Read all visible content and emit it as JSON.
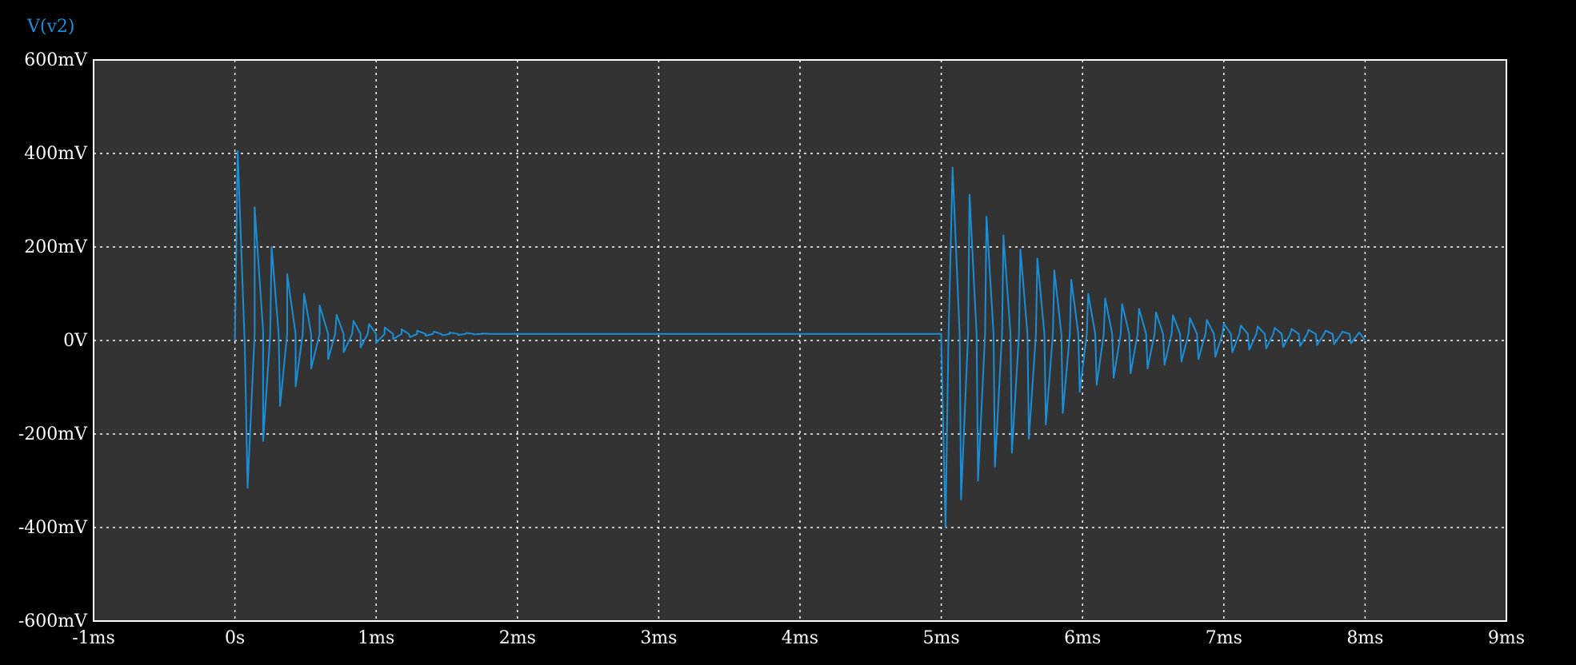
{
  "chart_data": {
    "type": "line",
    "title": "",
    "xlabel": "",
    "ylabel": "",
    "x_unit": "ms",
    "y_unit": "mV",
    "xlim": [
      -1,
      9
    ],
    "ylim": [
      -600,
      600
    ],
    "x_ticks": [
      -1,
      0,
      1,
      2,
      3,
      4,
      5,
      6,
      7,
      8,
      9
    ],
    "x_tick_labels": [
      "-1ms",
      "0s",
      "1ms",
      "2ms",
      "3ms",
      "4ms",
      "5ms",
      "6ms",
      "7ms",
      "8ms",
      "9ms"
    ],
    "y_ticks": [
      600,
      400,
      200,
      0,
      -200,
      -400,
      -600
    ],
    "y_tick_labels": [
      "600mV",
      "400mV",
      "200mV",
      "0V",
      "-200mV",
      "-400mV",
      "-600mV"
    ],
    "grid": true,
    "legend": "top-left",
    "colors": {
      "background": "#000000",
      "plot_area": "#333333",
      "frame": "#ffffff",
      "grid": "#ffffff",
      "text": "#ffffff",
      "series": "#1a8fd8"
    },
    "series": [
      {
        "name": "V(v2)",
        "color": "#1a8fd8",
        "points": [
          [
            0.0,
            0
          ],
          [
            0.02,
            405
          ],
          [
            0.07,
            -10
          ],
          [
            0.09,
            -315
          ],
          [
            0.14,
            15
          ],
          [
            0.14,
            285
          ],
          [
            0.2,
            20
          ],
          [
            0.2,
            -215
          ],
          [
            0.25,
            12
          ],
          [
            0.26,
            200
          ],
          [
            0.31,
            14
          ],
          [
            0.32,
            -140
          ],
          [
            0.37,
            14
          ],
          [
            0.37,
            142
          ],
          [
            0.43,
            14
          ],
          [
            0.43,
            -98
          ],
          [
            0.48,
            14
          ],
          [
            0.49,
            100
          ],
          [
            0.54,
            14
          ],
          [
            0.54,
            -60
          ],
          [
            0.6,
            14
          ],
          [
            0.6,
            75
          ],
          [
            0.66,
            14
          ],
          [
            0.66,
            -40
          ],
          [
            0.71,
            14
          ],
          [
            0.72,
            55
          ],
          [
            0.77,
            14
          ],
          [
            0.77,
            -25
          ],
          [
            0.83,
            14
          ],
          [
            0.84,
            42
          ],
          [
            0.89,
            14
          ],
          [
            0.89,
            -15
          ],
          [
            0.94,
            14
          ],
          [
            0.95,
            35
          ],
          [
            1.0,
            14
          ],
          [
            1.0,
            -5
          ],
          [
            1.06,
            14
          ],
          [
            1.06,
            28
          ],
          [
            1.12,
            14
          ],
          [
            1.12,
            3
          ],
          [
            1.18,
            14
          ],
          [
            1.18,
            24
          ],
          [
            1.23,
            14
          ],
          [
            1.24,
            7
          ],
          [
            1.29,
            14
          ],
          [
            1.29,
            21
          ],
          [
            1.35,
            14
          ],
          [
            1.35,
            10
          ],
          [
            1.4,
            14
          ],
          [
            1.41,
            19
          ],
          [
            1.46,
            14
          ],
          [
            1.47,
            11
          ],
          [
            1.52,
            14
          ],
          [
            1.52,
            17
          ],
          [
            1.58,
            14
          ],
          [
            1.58,
            12
          ],
          [
            1.63,
            14
          ],
          [
            1.64,
            16
          ],
          [
            1.69,
            14
          ],
          [
            1.69,
            13
          ],
          [
            1.75,
            14
          ],
          [
            1.75,
            15
          ],
          [
            1.81,
            14
          ],
          [
            1.81,
            14
          ],
          [
            1.86,
            14
          ],
          [
            1.86,
            14
          ],
          [
            1.92,
            14
          ],
          [
            1.92,
            14
          ],
          [
            1.98,
            14
          ],
          [
            1.98,
            14
          ],
          [
            2.04,
            14
          ],
          [
            2.04,
            14
          ],
          [
            2.09,
            14
          ],
          [
            2.1,
            14
          ],
          [
            2.15,
            14
          ],
          [
            2.15,
            14
          ],
          [
            2.21,
            14
          ],
          [
            2.21,
            14
          ],
          [
            2.26,
            14
          ],
          [
            2.27,
            14
          ],
          [
            2.32,
            14
          ],
          [
            2.33,
            14
          ],
          [
            2.38,
            14
          ],
          [
            2.38,
            14
          ],
          [
            2.44,
            14
          ],
          [
            2.44,
            14
          ],
          [
            2.49,
            14
          ],
          [
            2.5,
            14
          ],
          [
            5.0,
            14
          ],
          [
            5.0,
            0
          ],
          [
            5.03,
            -400
          ],
          [
            5.05,
            -10
          ],
          [
            5.08,
            370
          ],
          [
            5.13,
            14
          ],
          [
            5.14,
            -340
          ],
          [
            5.19,
            14
          ],
          [
            5.2,
            312
          ],
          [
            5.25,
            14
          ],
          [
            5.26,
            -300
          ],
          [
            5.31,
            14
          ],
          [
            5.32,
            265
          ],
          [
            5.37,
            14
          ],
          [
            5.38,
            -270
          ],
          [
            5.43,
            14
          ],
          [
            5.44,
            225
          ],
          [
            5.49,
            14
          ],
          [
            5.5,
            -240
          ],
          [
            5.55,
            14
          ],
          [
            5.56,
            195
          ],
          [
            5.61,
            14
          ],
          [
            5.62,
            -210
          ],
          [
            5.67,
            14
          ],
          [
            5.68,
            175
          ],
          [
            5.73,
            14
          ],
          [
            5.74,
            -180
          ],
          [
            5.79,
            14
          ],
          [
            5.8,
            150
          ],
          [
            5.85,
            14
          ],
          [
            5.86,
            -155
          ],
          [
            5.91,
            14
          ],
          [
            5.92,
            130
          ],
          [
            5.97,
            14
          ],
          [
            5.98,
            -110
          ],
          [
            6.03,
            14
          ],
          [
            6.04,
            100
          ],
          [
            6.09,
            14
          ],
          [
            6.1,
            -95
          ],
          [
            6.15,
            14
          ],
          [
            6.16,
            90
          ],
          [
            6.21,
            14
          ],
          [
            6.22,
            -80
          ],
          [
            6.27,
            14
          ],
          [
            6.28,
            78
          ],
          [
            6.33,
            14
          ],
          [
            6.34,
            -70
          ],
          [
            6.39,
            14
          ],
          [
            6.4,
            68
          ],
          [
            6.45,
            14
          ],
          [
            6.46,
            -60
          ],
          [
            6.51,
            14
          ],
          [
            6.52,
            60
          ],
          [
            6.57,
            14
          ],
          [
            6.58,
            -52
          ],
          [
            6.63,
            14
          ],
          [
            6.64,
            54
          ],
          [
            6.69,
            14
          ],
          [
            6.7,
            -45
          ],
          [
            6.75,
            14
          ],
          [
            6.76,
            48
          ],
          [
            6.81,
            14
          ],
          [
            6.82,
            -40
          ],
          [
            6.87,
            14
          ],
          [
            6.88,
            44
          ],
          [
            6.93,
            14
          ],
          [
            6.94,
            -35
          ],
          [
            6.99,
            14
          ],
          [
            7.0,
            36
          ],
          [
            7.05,
            14
          ],
          [
            7.06,
            -25
          ],
          [
            7.11,
            14
          ],
          [
            7.12,
            32
          ],
          [
            7.17,
            14
          ],
          [
            7.18,
            -20
          ],
          [
            7.23,
            14
          ],
          [
            7.24,
            30
          ],
          [
            7.29,
            14
          ],
          [
            7.3,
            -17
          ],
          [
            7.35,
            14
          ],
          [
            7.36,
            27
          ],
          [
            7.41,
            14
          ],
          [
            7.42,
            -14
          ],
          [
            7.47,
            14
          ],
          [
            7.48,
            25
          ],
          [
            7.53,
            14
          ],
          [
            7.54,
            -12
          ],
          [
            7.59,
            14
          ],
          [
            7.6,
            23
          ],
          [
            7.65,
            14
          ],
          [
            7.66,
            -10
          ],
          [
            7.71,
            14
          ],
          [
            7.72,
            21
          ],
          [
            7.77,
            14
          ],
          [
            7.78,
            -8
          ],
          [
            7.83,
            14
          ],
          [
            7.84,
            19
          ],
          [
            7.89,
            14
          ],
          [
            7.9,
            -6
          ],
          [
            7.95,
            14
          ],
          [
            7.96,
            17
          ],
          [
            8.0,
            0
          ]
        ]
      }
    ]
  }
}
